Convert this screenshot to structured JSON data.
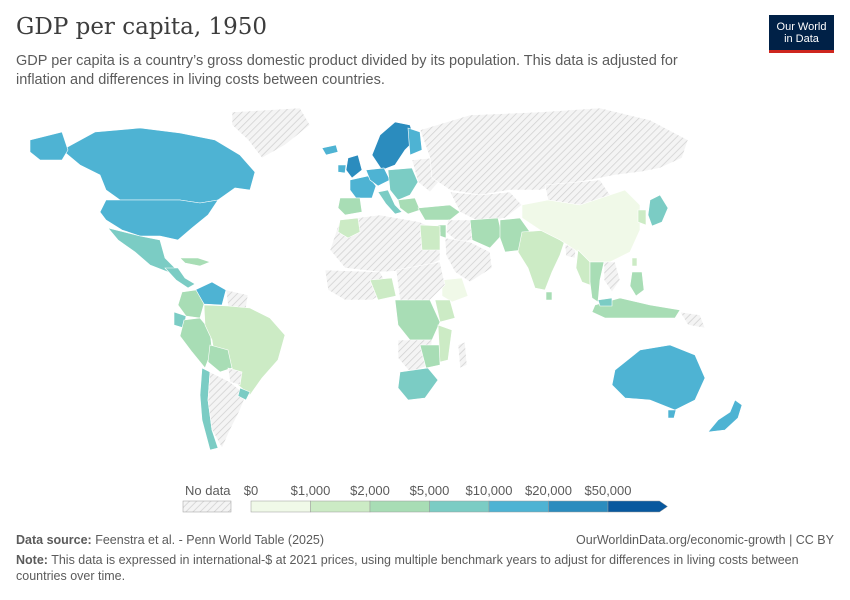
{
  "title": "GDP per capita, 1950",
  "subtitle": "GDP per capita is a country’s gross domestic product divided by its population. This data is adjusted for inflation and differences in living costs between countries.",
  "logo": {
    "line1": "Our World",
    "line2": "in Data"
  },
  "legend": {
    "nodata_label": "No data",
    "labels": [
      "$0",
      "$1,000",
      "$2,000",
      "$5,000",
      "$10,000",
      "$20,000",
      "$50,000"
    ],
    "colors": [
      "#f0f9e8",
      "#ccebc5",
      "#a8ddb5",
      "#7bccc4",
      "#4eb3d3",
      "#2b8cbe",
      "#08589e"
    ]
  },
  "source": {
    "label": "Data source:",
    "text": "Feenstra et al. - Penn World Table (2025)"
  },
  "url": "OurWorldinData.org/economic-growth | CC BY",
  "note": {
    "label": "Note:",
    "text": "This data is expressed in international-$ at 2021 prices, using multiple benchmark years to adjust for differences in living costs between countries over time."
  }
}
